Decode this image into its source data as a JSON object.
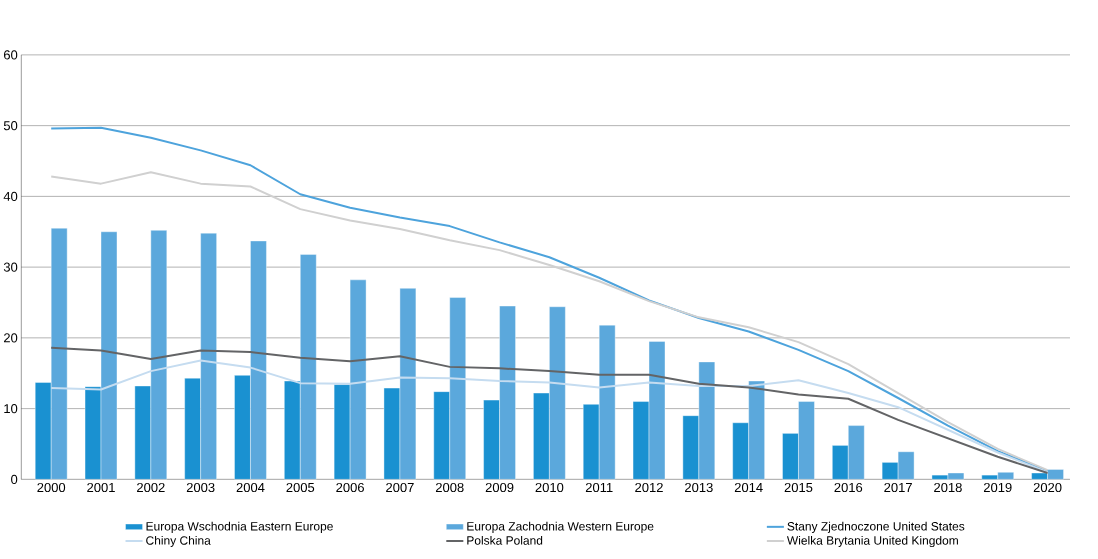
{
  "chart_data": {
    "type": "bar",
    "categories": [
      "2000",
      "2001",
      "2002",
      "2003",
      "2004",
      "2005",
      "2006",
      "2007",
      "2008",
      "2009",
      "2010",
      "2011",
      "2012",
      "2013",
      "2014",
      "2015",
      "2016",
      "2017",
      "2018",
      "2019",
      "2020"
    ],
    "series": [
      {
        "name": "Europa Wschodnia Eastern Europe",
        "color": "#1a91d1",
        "values": [
          13.7,
          13.1,
          13.2,
          14.3,
          14.7,
          13.9,
          13.4,
          12.9,
          12.4,
          11.2,
          12.2,
          10.6,
          11.0,
          9.0,
          8.0,
          6.5,
          4.8,
          2.4,
          0.6,
          0.6,
          0.9
        ]
      },
      {
        "name": "Europa Zachodnia Western Europe",
        "color": "#5ba8dc",
        "values": [
          35.5,
          35.0,
          35.2,
          34.8,
          33.7,
          31.8,
          28.2,
          27.0,
          25.7,
          24.5,
          24.4,
          21.8,
          19.5,
          16.6,
          13.9,
          11.0,
          7.6,
          3.9,
          0.9,
          1.0,
          1.4
        ]
      },
      {
        "name": "Stany Zjednoczone United States",
        "type": "line",
        "color": "#4da3dc",
        "values": [
          49.6,
          49.7,
          48.3,
          46.5,
          44.4,
          40.3,
          38.4,
          37.0,
          35.8,
          33.5,
          31.4,
          28.5,
          25.3,
          22.8,
          20.9,
          18.3,
          15.3,
          11.5,
          7.6,
          4.0,
          1.2
        ]
      },
      {
        "name": "Chiny China",
        "type": "line",
        "color": "#c5dcf0",
        "values": [
          12.9,
          12.7,
          15.3,
          16.8,
          15.8,
          13.6,
          13.5,
          14.4,
          14.3,
          13.9,
          13.7,
          13.0,
          13.7,
          13.2,
          13.2,
          14.0,
          12.2,
          10.2,
          7.0,
          3.8,
          1.0
        ]
      },
      {
        "name": "Polska Poland",
        "type": "line",
        "color": "#636466",
        "values": [
          18.6,
          18.2,
          17.0,
          18.2,
          18.0,
          17.2,
          16.7,
          17.4,
          15.9,
          15.7,
          15.3,
          14.8,
          14.8,
          13.5,
          13.0,
          12.0,
          11.4,
          8.4,
          5.8,
          3.2,
          0.9
        ]
      },
      {
        "name": "Wielka Brytania United Kingdom",
        "type": "line",
        "color": "#d0d0d0",
        "values": [
          42.8,
          41.8,
          43.4,
          41.8,
          41.4,
          38.2,
          36.6,
          35.4,
          33.8,
          32.4,
          30.3,
          28.0,
          25.2,
          22.9,
          21.5,
          19.4,
          16.3,
          12.2,
          8.1,
          4.3,
          1.3
        ]
      }
    ],
    "ylim": [
      0,
      60
    ],
    "yticks": [
      0,
      10,
      20,
      30,
      40,
      50,
      60
    ],
    "grid": "y",
    "legend": "bottom"
  }
}
